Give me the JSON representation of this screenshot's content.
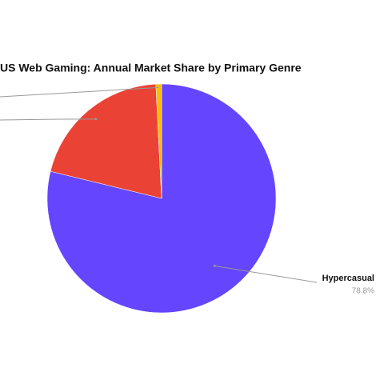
{
  "chart_data": {
    "type": "pie",
    "title": "US Web Gaming: Annual Market Share by Primary Genre",
    "categories": [
      "Hypercasual",
      null,
      null
    ],
    "values": [
      78.8,
      20.4,
      0.8
    ],
    "value_labels": [
      "78.8%",
      null,
      null
    ],
    "colors": [
      "#6645ff",
      "#ea4335",
      "#fbbc04"
    ]
  }
}
